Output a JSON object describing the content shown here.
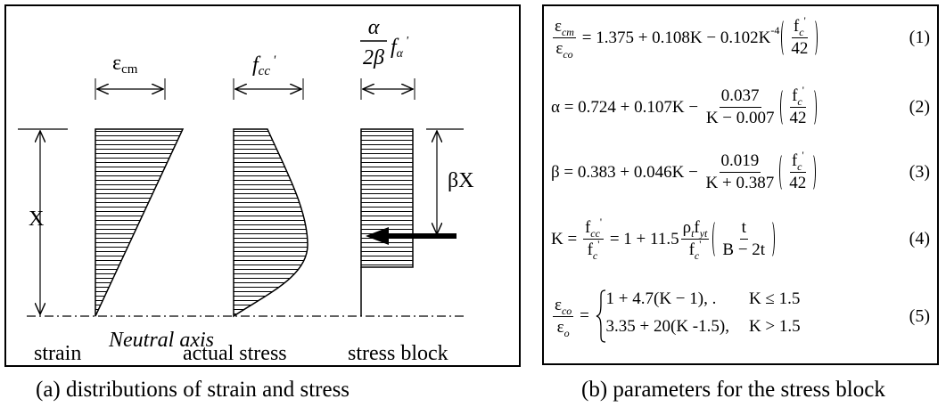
{
  "diagram": {
    "strain_label": {
      "main": "ε",
      "sub": "cm"
    },
    "stress_label": {
      "main": "f",
      "sub": "cc",
      "sup": "'"
    },
    "block_label": {
      "num": "α",
      "den": "2β",
      "main": "f",
      "sub": "α",
      "sup": "'"
    },
    "depth_label": "X",
    "block_depth_label": "βX",
    "neutral_axis": "Neutral axis",
    "columns": [
      "strain",
      "actual stress",
      "stress block"
    ],
    "caption": "(a) distributions of strain and stress"
  },
  "equations": {
    "items": [
      {
        "tokens": [
          {
            "frac": [
              [
                "ε",
                {
                  "sub": "cm"
                }
              ],
              [
                "ε",
                {
                  "sub": "co"
                }
              ]
            ]
          },
          " = 1.375 + 0.108K − 0.102K",
          {
            "sup": "-4"
          },
          {
            "paren": [
              {
                "frac": [
                  [
                    "f",
                    {
                      "sub": "c"
                    },
                    {
                      "sup": "'"
                    }
                  ],
                  [
                    "42"
                  ]
                ]
              }
            ]
          }
        ],
        "number": "(1)"
      },
      {
        "tokens": [
          "α = 0.724 + 0.107K − ",
          {
            "frac": [
              [
                "0.037"
              ],
              [
                "K − 0.007"
              ]
            ]
          },
          {
            "paren": [
              {
                "frac": [
                  [
                    "f",
                    {
                      "sub": "c"
                    },
                    {
                      "sup": "'"
                    }
                  ],
                  [
                    "42"
                  ]
                ]
              }
            ]
          }
        ],
        "number": "(2)"
      },
      {
        "tokens": [
          "β = 0.383 + 0.046K − ",
          {
            "frac": [
              [
                "0.019"
              ],
              [
                "K + 0.387"
              ]
            ]
          },
          {
            "paren": [
              {
                "frac": [
                  [
                    "f",
                    {
                      "sub": "c"
                    },
                    {
                      "sup": "'"
                    }
                  ],
                  [
                    "42"
                  ]
                ]
              }
            ]
          }
        ],
        "number": "(3)"
      },
      {
        "tokens": [
          "K = ",
          {
            "frac": [
              [
                "f",
                {
                  "sub": "cc"
                },
                {
                  "sup": "'"
                }
              ],
              [
                "f",
                {
                  "sub": "c"
                },
                {
                  "sup": "'"
                }
              ]
            ]
          },
          " = 1 + 11.5",
          {
            "frac": [
              [
                "ρ",
                {
                  "sub": "t"
                },
                "f",
                {
                  "sub": "yt"
                }
              ],
              [
                "f",
                {
                  "sub": "c"
                },
                {
                  "sup": "'"
                }
              ]
            ]
          },
          {
            "paren": [
              {
                "frac": [
                  [
                    "t"
                  ],
                  [
                    "B − 2t"
                  ]
                ]
              }
            ]
          }
        ],
        "number": "(4)"
      },
      {
        "tokens": [
          {
            "frac": [
              [
                "ε",
                {
                  "sub": "co"
                }
              ],
              [
                "ε",
                {
                  "sub": "o"
                }
              ]
            ]
          },
          " = ",
          {
            "cases": [
              [
                [
                  "1 + 4.7(K − 1), ."
                ],
                [
                  "K ≤ 1.5"
                ]
              ],
              [
                [
                  "3.35 + 20(K -1.5),"
                ],
                [
                  "K > 1.5"
                ]
              ]
            ]
          }
        ],
        "number": "(5)"
      }
    ],
    "caption": "(b) parameters for the stress block"
  }
}
